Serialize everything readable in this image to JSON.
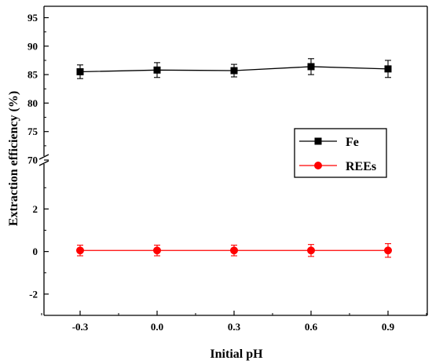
{
  "chart_data": {
    "type": "line",
    "title": "",
    "xlabel": "Initial pH",
    "ylabel": "Extraction efficiency (%)",
    "x": [
      -0.3,
      0.0,
      0.3,
      0.6,
      0.9
    ],
    "x_tick_labels": [
      "-0.3",
      "0.0",
      "0.3",
      "0.6",
      "0.9"
    ],
    "y_upper_range": [
      70,
      97
    ],
    "y_lower_range": [
      -3,
      4.3
    ],
    "y_upper_tick_labels": [
      "70",
      "75",
      "80",
      "85",
      "90",
      "95"
    ],
    "y_lower_tick_labels": [
      "-2",
      "0",
      "2"
    ],
    "axis_break": "broken y-axis between 4.3 and 70",
    "grid": false,
    "legend_position": "right-middle",
    "series": [
      {
        "name": "Fe",
        "color": "#000000",
        "marker": "square",
        "values": [
          85.5,
          85.8,
          85.7,
          86.4,
          86.0
        ],
        "errors": [
          1.2,
          1.3,
          1.1,
          1.4,
          1.5
        ]
      },
      {
        "name": "REEs",
        "color": "#ff0000",
        "marker": "circle",
        "values": [
          0.05,
          0.05,
          0.05,
          0.05,
          0.05
        ],
        "errors": [
          0.25,
          0.25,
          0.25,
          0.28,
          0.32
        ]
      }
    ]
  }
}
